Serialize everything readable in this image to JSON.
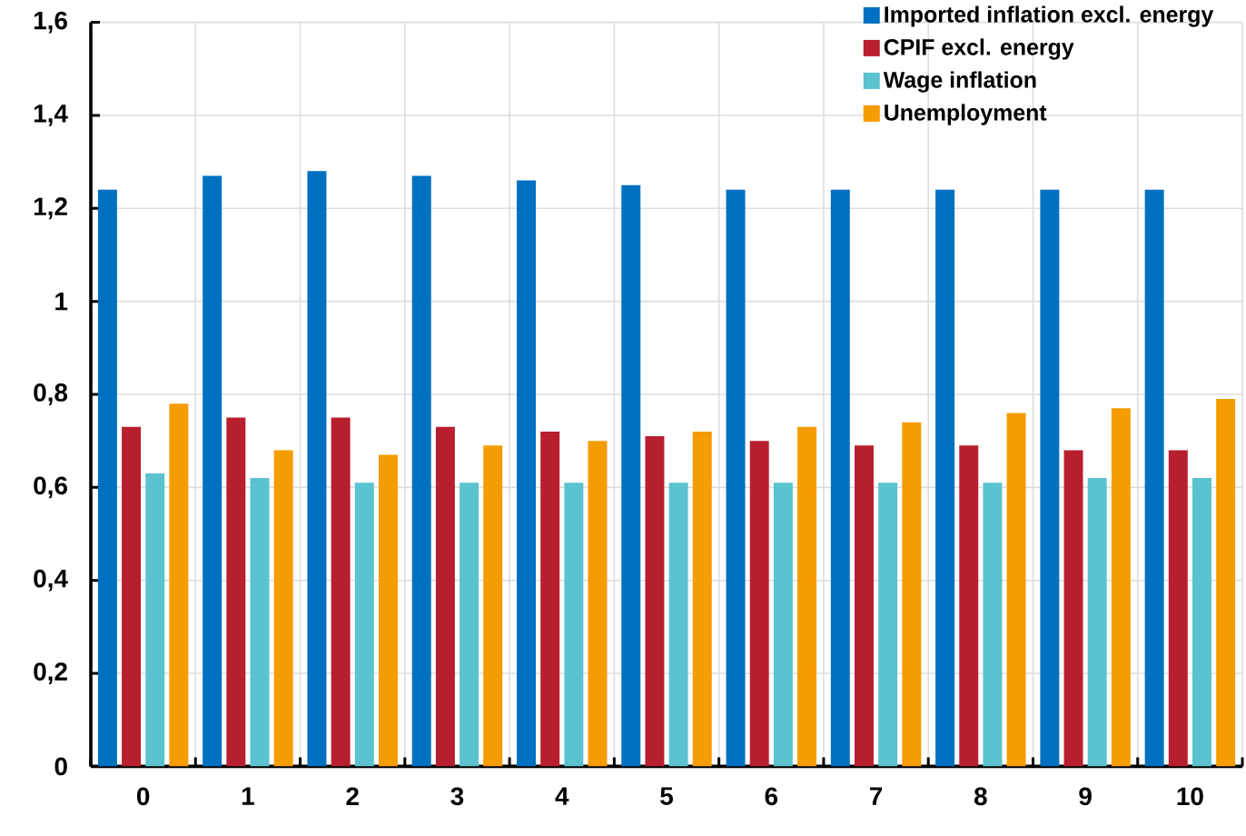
{
  "chart_data": {
    "type": "bar",
    "categories": [
      "0",
      "1",
      "2",
      "3",
      "4",
      "5",
      "6",
      "7",
      "8",
      "9",
      "10"
    ],
    "series": [
      {
        "name": "Imported inflation excl. energy",
        "color": "#0070c0",
        "values": [
          1.24,
          1.27,
          1.28,
          1.27,
          1.26,
          1.25,
          1.24,
          1.24,
          1.24,
          1.24,
          1.24
        ]
      },
      {
        "name": "CPIF excl. energy",
        "color": "#b81f2e",
        "values": [
          0.73,
          0.75,
          0.75,
          0.73,
          0.72,
          0.71,
          0.7,
          0.69,
          0.69,
          0.68,
          0.68
        ]
      },
      {
        "name": "Wage inflation",
        "color": "#5bc2d0",
        "values": [
          0.63,
          0.62,
          0.61,
          0.61,
          0.61,
          0.61,
          0.61,
          0.61,
          0.61,
          0.62,
          0.62
        ]
      },
      {
        "name": "Unemployment",
        "color": "#f59c00",
        "values": [
          0.78,
          0.68,
          0.67,
          0.69,
          0.7,
          0.72,
          0.73,
          0.74,
          0.76,
          0.77,
          0.79
        ]
      }
    ],
    "ylim": [
      0,
      1.6
    ],
    "yticks": [
      0,
      {
        "value": 0.2,
        "label": "0,2"
      },
      {
        "value": 0.4,
        "label": "0,4"
      },
      {
        "value": 0.6,
        "label": "0,6"
      },
      {
        "value": 0.8,
        "label": "0,8"
      },
      1,
      {
        "value": 1.2,
        "label": "1,2"
      },
      {
        "value": 1.4,
        "label": "1,4"
      },
      {
        "value": 1.6,
        "label": "1,6"
      }
    ],
    "grid": true,
    "legend": "top right"
  }
}
